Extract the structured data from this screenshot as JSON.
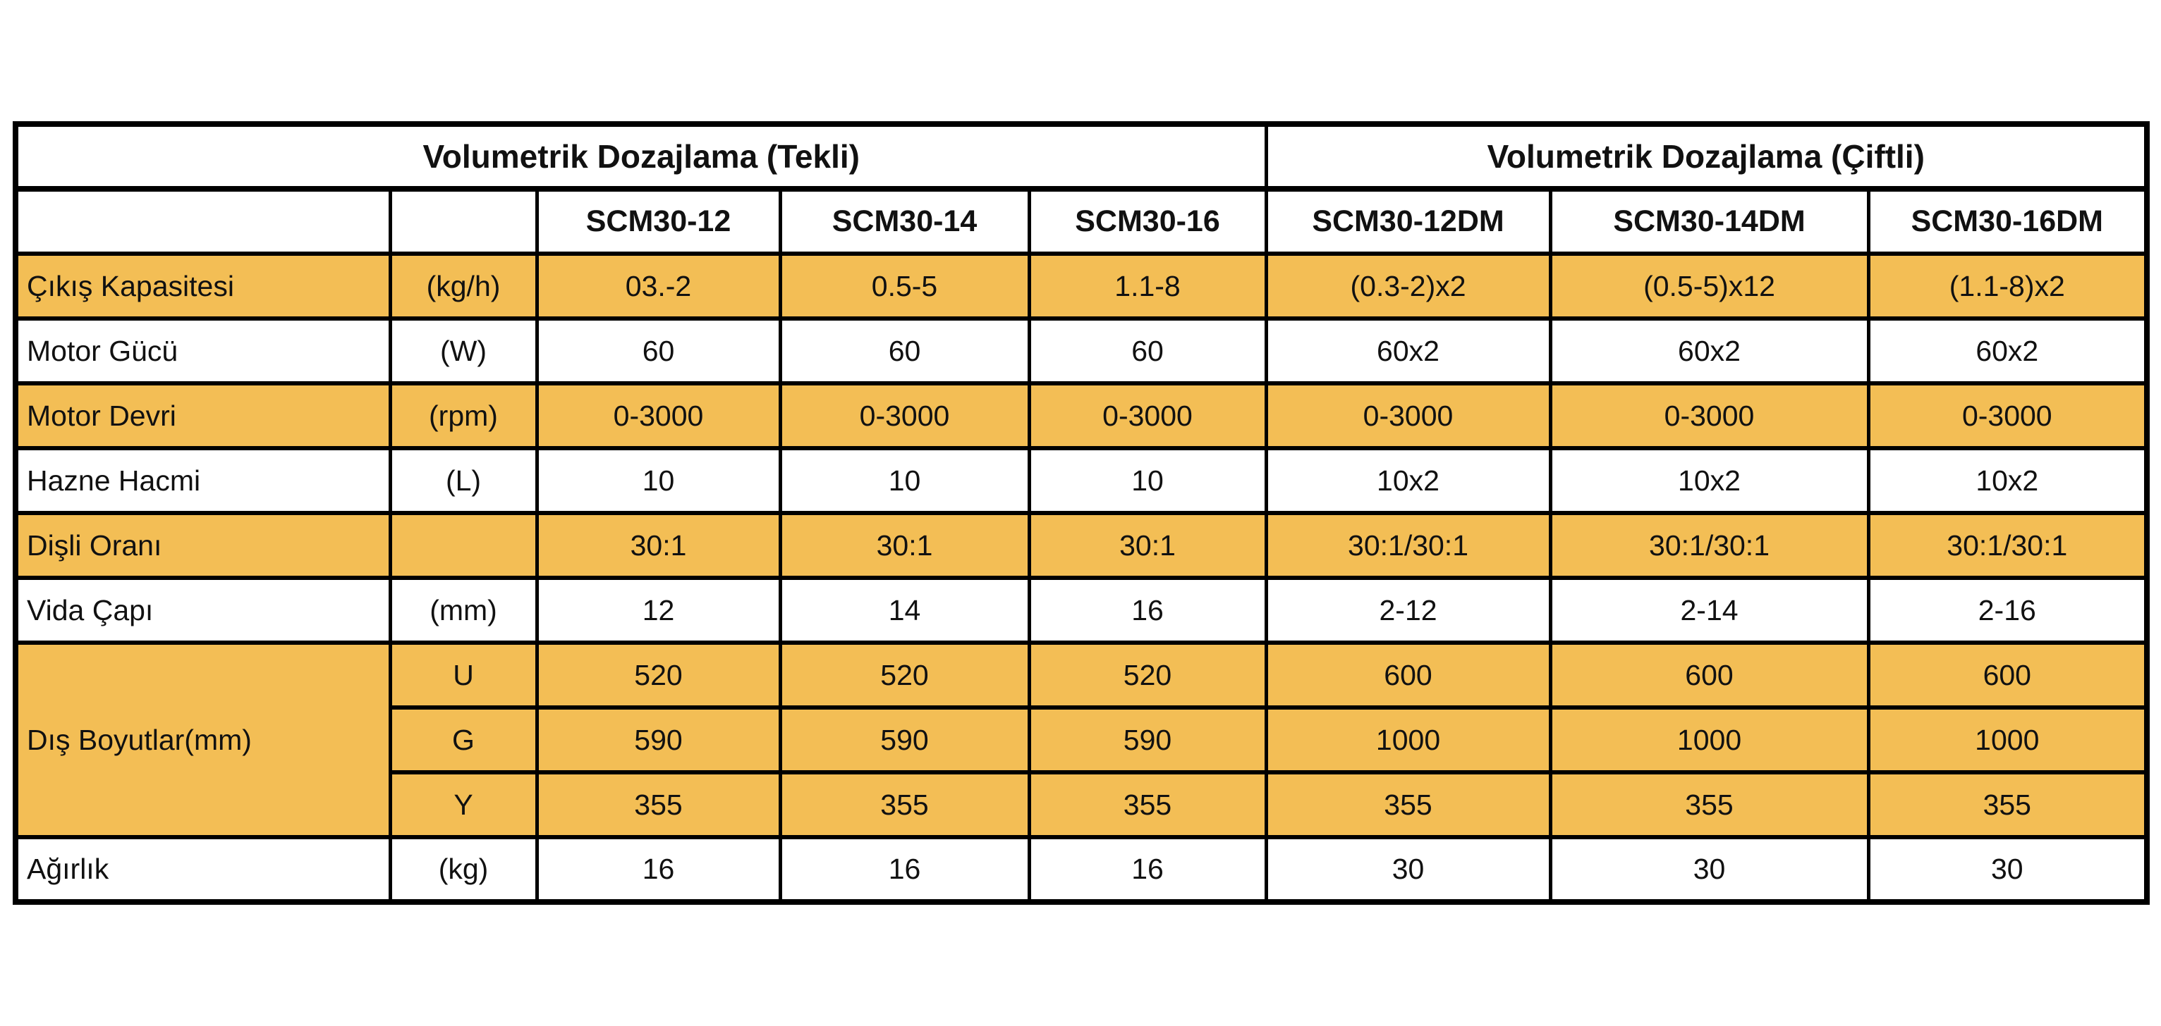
{
  "table": {
    "colors": {
      "highlight": "#F3BE55",
      "border": "#000000",
      "cell_background": "#FFFFFF",
      "text": "#111111"
    },
    "group_headers": [
      {
        "label": "Volumetrik Dozajlama (Tekli)",
        "span": 5
      },
      {
        "label": "Volumetrik Dozajlama (Çiftli)",
        "span": 3
      }
    ],
    "model_headers": [
      "",
      "",
      "SCM30-12",
      "SCM30-14",
      "SCM30-16",
      "SCM30-12DM",
      "SCM30-14DM",
      "SCM30-16DM"
    ],
    "rows": [
      {
        "label": "Çıkış Kapasitesi",
        "unit": "(kg/h)",
        "highlight": true,
        "values": [
          "03.-2",
          "0.5-5",
          "1.1-8",
          "(0.3-2)x2",
          "(0.5-5)x12",
          "(1.1-8)x2"
        ]
      },
      {
        "label": "Motor Gücü",
        "unit": "(W)",
        "highlight": false,
        "values": [
          "60",
          "60",
          "60",
          "60x2",
          "60x2",
          "60x2"
        ]
      },
      {
        "label": "Motor Devri",
        "unit": "(rpm)",
        "highlight": true,
        "values": [
          "0-3000",
          "0-3000",
          "0-3000",
          "0-3000",
          "0-3000",
          "0-3000"
        ]
      },
      {
        "label": "Hazne Hacmi",
        "unit": "(L)",
        "highlight": false,
        "values": [
          "10",
          "10",
          "10",
          "10x2",
          "10x2",
          "10x2"
        ]
      },
      {
        "label": "Dişli Oranı",
        "unit": "",
        "highlight": true,
        "values": [
          "30:1",
          "30:1",
          "30:1",
          "30:1/30:1",
          "30:1/30:1",
          "30:1/30:1"
        ]
      },
      {
        "label": "Vida Çapı",
        "unit": "(mm)",
        "highlight": false,
        "values": [
          "12",
          "14",
          "16",
          "2-12",
          "2-14",
          "2-16"
        ]
      },
      {
        "label": "Dış Boyutlar(mm)",
        "highlight": true,
        "subrows": [
          {
            "unit": "U",
            "values": [
              "520",
              "520",
              "520",
              "600",
              "600",
              "600"
            ]
          },
          {
            "unit": "G",
            "values": [
              "590",
              "590",
              "590",
              "1000",
              "1000",
              "1000"
            ]
          },
          {
            "unit": "Y",
            "values": [
              "355",
              "355",
              "355",
              "355",
              "355",
              "355"
            ]
          }
        ]
      },
      {
        "label": "Ağırlık",
        "unit": "(kg)",
        "highlight": false,
        "values": [
          "16",
          "16",
          "16",
          "30",
          "30",
          "30"
        ]
      }
    ]
  }
}
